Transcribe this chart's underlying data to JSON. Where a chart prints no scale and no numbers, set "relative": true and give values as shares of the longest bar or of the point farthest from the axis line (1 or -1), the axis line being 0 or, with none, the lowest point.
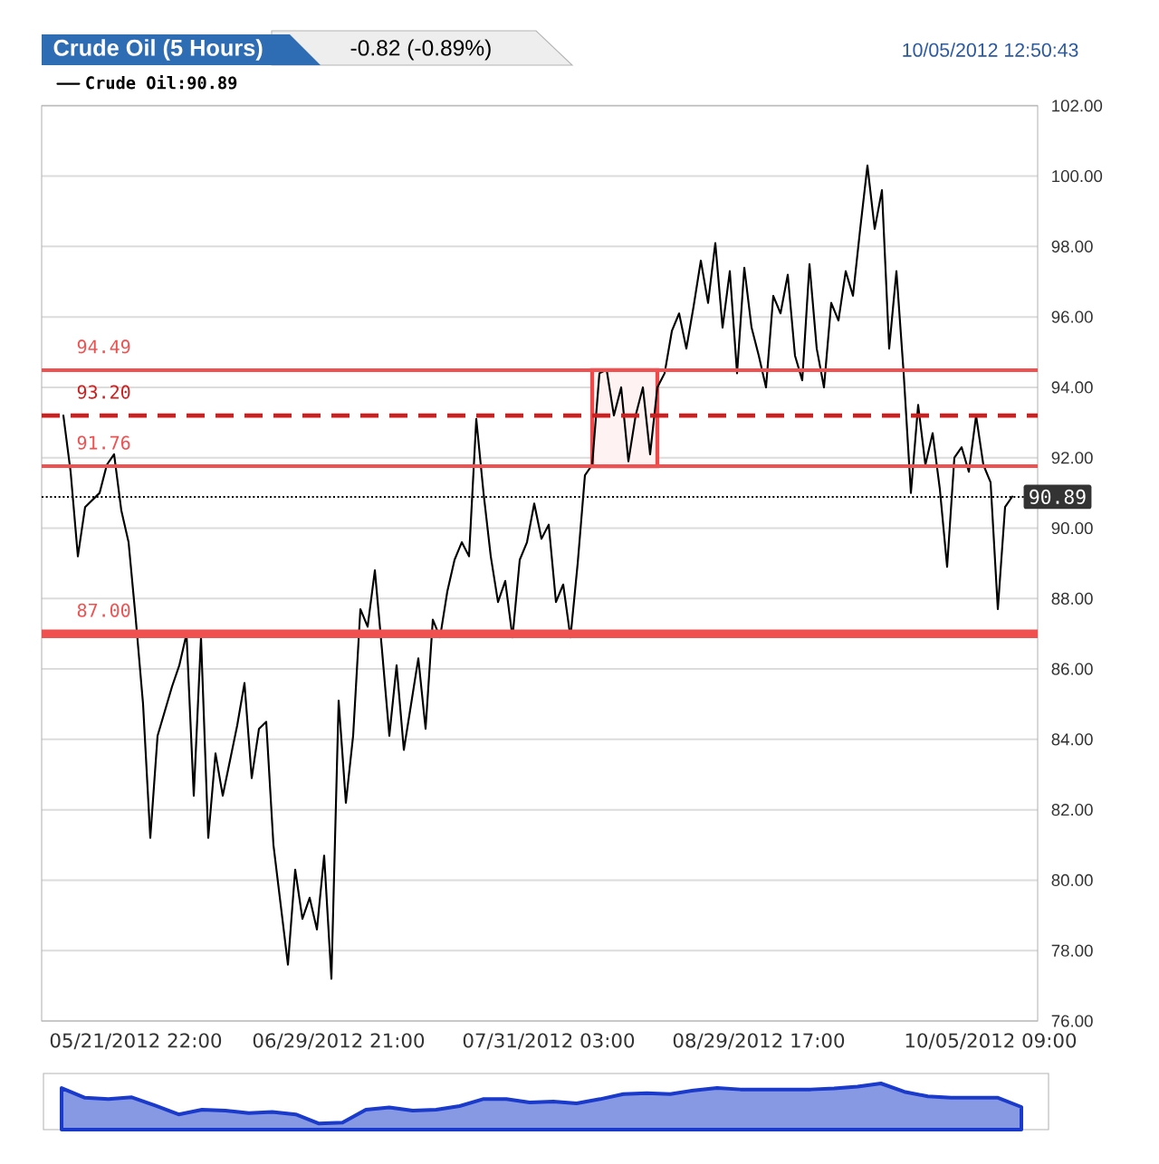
{
  "chart_data": [
    {
      "type": "line",
      "title": "Crude Oil (5 Hours)",
      "subtitle": "-0.82 (-0.89%)",
      "annotations": [
        "10/05/2012 12:50:43"
      ],
      "categories": [
        null,
        null,
        null,
        null,
        null,
        null,
        null,
        null,
        null,
        null,
        "05/21/2012 22:00",
        null,
        null,
        null,
        null,
        null,
        null,
        null,
        null,
        null,
        null,
        null,
        null,
        null,
        null,
        null,
        null,
        null,
        null,
        null,
        null,
        null,
        null,
        null,
        null,
        null,
        null,
        null,
        "06/29/2012 21:00",
        null,
        null,
        null,
        null,
        null,
        null,
        null,
        null,
        null,
        null,
        null,
        null,
        null,
        null,
        null,
        null,
        null,
        null,
        null,
        null,
        null,
        null,
        null,
        null,
        null,
        null,
        null,
        null,
        "07/31/2012 03:00",
        null,
        null,
        null,
        null,
        null,
        null,
        null,
        null,
        null,
        null,
        null,
        null,
        null,
        null,
        null,
        null,
        null,
        null,
        null,
        null,
        null,
        null,
        null,
        null,
        null,
        null,
        null,
        null,
        "08/29/2012 17:00",
        null,
        null,
        null,
        null,
        null,
        null,
        null,
        null,
        null,
        null,
        null,
        null,
        null,
        null,
        null,
        null,
        null,
        null,
        null,
        null,
        null,
        null,
        null,
        null,
        null,
        null,
        null,
        null,
        null,
        null,
        null,
        "10/05/2012 09:00",
        null,
        null,
        null
      ],
      "ylim": [
        76,
        102
      ],
      "yticks": [
        {
          "value": 76,
          "label": "76.00"
        },
        {
          "value": 78,
          "label": "78.00"
        },
        {
          "value": 80,
          "label": "80.00"
        },
        {
          "value": 82,
          "label": "82.00"
        },
        {
          "value": 84,
          "label": "84.00"
        },
        {
          "value": 86,
          "label": "86.00"
        },
        {
          "value": 88,
          "label": "88.00"
        },
        {
          "value": 90,
          "label": "90.00"
        },
        {
          "value": 92,
          "label": "92.00"
        },
        {
          "value": 94,
          "label": "94.00"
        },
        {
          "value": 96,
          "label": "96.00"
        },
        {
          "value": 98,
          "label": "98.00"
        },
        {
          "value": 100,
          "label": "100.00"
        },
        {
          "value": 102,
          "label": "102.00"
        }
      ],
      "grid": "y",
      "legend": "top left",
      "series": [
        {
          "name": "Crude Oil:90.89",
          "color": "#000000",
          "values": [
            93.2,
            91.6,
            89.2,
            90.6,
            90.8,
            91.0,
            91.8,
            92.1,
            90.5,
            89.6,
            87.4,
            85.0,
            81.2,
            84.1,
            84.8,
            85.5,
            86.1,
            87.0,
            82.4,
            86.9,
            81.2,
            83.6,
            82.4,
            83.4,
            84.4,
            85.6,
            82.9,
            84.3,
            84.5,
            81.0,
            79.3,
            77.6,
            80.3,
            78.9,
            79.5,
            78.6,
            80.7,
            77.2,
            85.1,
            82.2,
            84.1,
            87.7,
            87.2,
            88.8,
            86.5,
            84.1,
            86.1,
            83.7,
            85.0,
            86.3,
            84.3,
            87.4,
            86.9,
            88.2,
            89.1,
            89.6,
            89.2,
            93.1,
            91.0,
            89.2,
            87.9,
            88.5,
            86.9,
            89.1,
            89.6,
            90.7,
            89.7,
            90.1,
            87.9,
            88.4,
            86.9,
            89.0,
            91.5,
            91.8,
            94.4,
            94.5,
            93.2,
            94.0,
            91.9,
            93.2,
            94.0,
            92.1,
            94.0,
            94.4,
            95.6,
            96.1,
            95.1,
            96.3,
            97.6,
            96.4,
            98.1,
            95.7,
            97.3,
            94.4,
            97.4,
            95.7,
            94.9,
            94.0,
            96.6,
            96.1,
            97.2,
            94.9,
            94.2,
            97.5,
            95.1,
            94.0,
            96.4,
            95.9,
            97.3,
            96.6,
            98.5,
            100.3,
            98.5,
            99.6,
            95.1,
            97.3,
            94.4,
            91.0,
            93.5,
            91.8,
            92.7,
            91.1,
            88.9,
            92.0,
            92.3,
            91.6,
            93.2,
            91.8,
            91.3,
            87.7,
            90.6,
            90.9
          ]
        },
        {
          "color": "#f04848",
          "values": [
            null,
            null,
            null,
            null,
            null,
            null,
            null,
            null,
            null,
            null,
            null,
            null,
            null,
            null,
            null,
            null,
            null,
            null,
            null,
            null,
            null,
            null,
            null,
            null,
            null,
            null,
            null,
            null,
            null,
            null,
            null,
            null,
            null,
            null,
            null,
            null,
            null,
            null,
            null,
            null,
            null,
            null,
            null,
            null,
            null,
            null,
            null,
            null,
            null,
            null,
            null,
            null,
            null,
            null,
            null,
            null,
            null,
            null,
            null,
            null,
            null,
            null,
            null,
            null,
            null,
            null,
            null,
            null,
            null,
            null,
            null,
            null,
            null,
            null,
            null,
            null,
            null,
            null,
            null,
            null,
            null,
            null,
            null,
            null,
            null,
            null,
            null,
            null,
            null,
            null,
            null,
            null,
            null,
            null,
            null,
            null,
            null,
            null,
            null,
            null,
            null,
            null,
            null,
            null,
            null,
            null,
            null,
            null,
            null,
            null,
            null,
            null,
            null,
            null,
            null,
            null,
            null,
            null,
            null,
            null,
            null,
            null,
            null,
            null,
            null,
            null,
            null,
            null,
            null,
            null,
            null,
            null
          ],
          "lower": [
            null,
            null,
            null,
            null,
            null,
            null,
            null,
            null,
            null,
            null,
            null,
            null,
            null,
            null,
            null,
            null,
            null,
            null,
            null,
            null,
            null,
            null,
            null,
            null,
            null,
            null,
            null,
            null,
            null,
            null,
            null,
            null,
            null,
            null,
            null,
            null,
            null,
            null,
            null,
            null,
            null,
            null,
            null,
            null,
            null,
            null,
            null,
            null,
            null,
            null,
            null,
            null,
            null,
            null,
            null,
            null,
            null,
            null,
            null,
            null,
            null,
            null,
            null,
            null,
            null,
            null,
            null,
            null,
            null,
            null,
            null,
            null,
            null,
            91.76,
            91.76,
            91.76,
            91.76,
            91.76,
            91.76,
            91.76,
            91.76,
            91.76,
            91.76,
            null,
            null,
            null,
            null,
            null,
            null,
            null,
            null,
            null,
            null,
            null,
            null,
            null,
            null,
            null,
            null,
            null,
            null,
            null,
            null,
            null,
            null,
            null,
            null,
            null,
            null,
            null,
            null,
            null,
            null,
            null,
            null,
            null,
            null,
            null,
            null,
            null,
            null,
            null,
            null,
            null,
            null,
            null,
            null,
            null,
            null,
            null,
            null,
            null
          ],
          "upper": [
            null,
            null,
            null,
            null,
            null,
            null,
            null,
            null,
            null,
            null,
            null,
            null,
            null,
            null,
            null,
            null,
            null,
            null,
            null,
            null,
            null,
            null,
            null,
            null,
            null,
            null,
            null,
            null,
            null,
            null,
            null,
            null,
            null,
            null,
            null,
            null,
            null,
            null,
            null,
            null,
            null,
            null,
            null,
            null,
            null,
            null,
            null,
            null,
            null,
            null,
            null,
            null,
            null,
            null,
            null,
            null,
            null,
            null,
            null,
            null,
            null,
            null,
            null,
            null,
            null,
            null,
            null,
            null,
            null,
            null,
            null,
            null,
            null,
            94.49,
            94.49,
            94.49,
            94.49,
            94.49,
            94.49,
            94.49,
            94.49,
            94.49,
            94.49,
            null,
            null,
            null,
            null,
            null,
            null,
            null,
            null,
            null,
            null,
            null,
            null,
            null,
            null,
            null,
            null,
            null,
            null,
            null,
            null,
            null,
            null,
            null,
            null,
            null,
            null,
            null,
            null,
            null,
            null,
            null,
            null,
            null,
            null,
            null,
            null,
            null,
            null,
            null,
            null,
            null,
            null,
            null,
            null,
            null,
            null,
            null,
            null,
            null
          ]
        }
      ],
      "ref_lines": [
        {
          "axis": "y",
          "value": 94.49,
          "label": "94.49",
          "color": "#f05050",
          "line_style": "solid"
        },
        {
          "axis": "y",
          "value": 93.2,
          "label": "93.20",
          "color": "#cc2020",
          "line_style": "dashed"
        },
        {
          "axis": "y",
          "value": 91.76,
          "label": "91.76",
          "color": "#f05050",
          "line_style": "solid"
        },
        {
          "axis": "y",
          "value": 87.0,
          "label": "87.00",
          "color": "#f05050",
          "line_style": "solid"
        },
        {
          "axis": "y",
          "value": 90.89,
          "label": "90.89",
          "color": "#000000",
          "line_style": "dotted"
        }
      ]
    },
    {
      "type": "area",
      "relative": true,
      "categories": [
        null,
        null,
        null,
        null,
        null,
        null,
        null,
        null,
        null,
        null,
        null,
        null,
        null,
        null,
        null,
        null,
        null,
        null,
        null,
        null,
        null,
        null,
        null,
        null,
        null,
        null,
        null,
        null,
        null,
        null,
        null,
        null,
        null,
        null,
        null,
        null,
        null,
        null,
        null,
        null,
        null,
        null
      ],
      "series": [
        {
          "color": "#1a3acc",
          "values": [
            0.9,
            0.69,
            0.66,
            0.7,
            0.52,
            0.33,
            0.43,
            0.41,
            0.36,
            0.38,
            0.33,
            0.13,
            0.15,
            0.43,
            0.48,
            0.41,
            0.43,
            0.51,
            0.66,
            0.66,
            0.59,
            0.61,
            0.57,
            0.66,
            0.77,
            0.79,
            0.77,
            0.85,
            0.9,
            0.87,
            0.87,
            0.87,
            0.87,
            0.89,
            0.93,
            1,
            0.82,
            0.72,
            0.69,
            0.69,
            0.69,
            0.49
          ]
        }
      ]
    }
  ]
}
